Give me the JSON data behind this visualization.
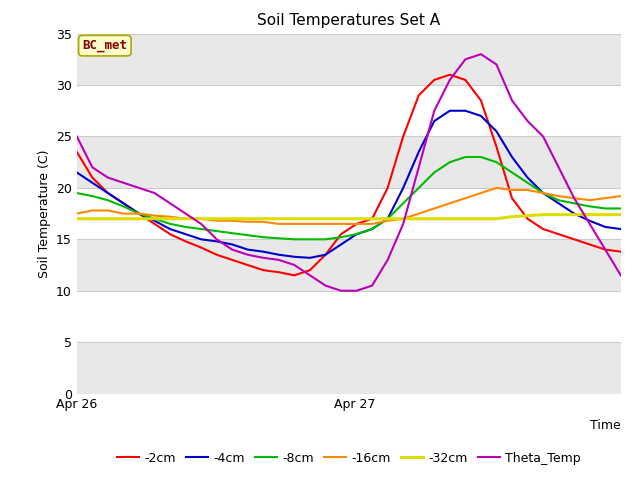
{
  "title": "Soil Temperatures Set A",
  "xlabel": "Time",
  "ylabel": "Soil Temperature (C)",
  "ylim": [
    0,
    35
  ],
  "yticks": [
    0,
    5,
    10,
    15,
    20,
    25,
    30,
    35
  ],
  "annotation_text": "BC_met",
  "annotation_color": "#8B0000",
  "annotation_bg": "#FFFFCC",
  "annotation_edge": "#AAAA00",
  "plot_bg": "#E8E8E8",
  "band_white": "#FFFFFF",
  "band_gray": "#E8E8E8",
  "grid_color": "#CCCCCC",
  "series_order": [
    "-2cm",
    "-4cm",
    "-8cm",
    "-16cm",
    "-32cm",
    "Theta_Temp"
  ],
  "series": {
    "-2cm": {
      "color": "#FF0000",
      "lw": 1.5
    },
    "-4cm": {
      "color": "#0000CC",
      "lw": 1.5
    },
    "-8cm": {
      "color": "#00BB00",
      "lw": 1.5
    },
    "-16cm": {
      "color": "#FF8800",
      "lw": 1.5
    },
    "-32cm": {
      "color": "#DDDD00",
      "lw": 2.2
    },
    "Theta_Temp": {
      "color": "#BB00BB",
      "lw": 1.5
    }
  },
  "x_ticks_labels": [
    "Apr 26",
    "Apr 27"
  ],
  "x_ticks_pos": [
    0,
    0.714
  ],
  "x_range": [
    0,
    1.4
  ],
  "data": {
    "t": [
      0.0,
      0.04,
      0.08,
      0.12,
      0.16,
      0.2,
      0.24,
      0.28,
      0.32,
      0.36,
      0.4,
      0.44,
      0.48,
      0.52,
      0.56,
      0.6,
      0.64,
      0.68,
      0.72,
      0.76,
      0.8,
      0.84,
      0.88,
      0.92,
      0.96,
      1.0,
      1.04,
      1.08,
      1.12,
      1.16,
      1.2,
      1.24,
      1.28,
      1.32,
      1.36,
      1.4
    ],
    "-2cm": [
      23.5,
      21.0,
      19.5,
      18.5,
      17.5,
      16.5,
      15.5,
      14.8,
      14.2,
      13.5,
      13.0,
      12.5,
      12.0,
      11.8,
      11.5,
      12.0,
      13.5,
      15.5,
      16.5,
      17.0,
      20.0,
      25.0,
      29.0,
      30.5,
      31.0,
      30.5,
      28.5,
      24.0,
      19.0,
      17.0,
      16.0,
      15.5,
      15.0,
      14.5,
      14.0,
      13.8
    ],
    "-4cm": [
      21.5,
      20.5,
      19.5,
      18.5,
      17.5,
      16.8,
      16.0,
      15.5,
      15.0,
      14.8,
      14.5,
      14.0,
      13.8,
      13.5,
      13.3,
      13.2,
      13.5,
      14.5,
      15.5,
      16.0,
      17.0,
      20.0,
      23.5,
      26.5,
      27.5,
      27.5,
      27.0,
      25.5,
      23.0,
      21.0,
      19.5,
      18.5,
      17.5,
      16.8,
      16.2,
      16.0
    ],
    "-8cm": [
      19.5,
      19.2,
      18.8,
      18.2,
      17.5,
      17.0,
      16.5,
      16.2,
      16.0,
      15.8,
      15.6,
      15.4,
      15.2,
      15.1,
      15.0,
      15.0,
      15.0,
      15.2,
      15.5,
      16.0,
      17.0,
      18.5,
      20.0,
      21.5,
      22.5,
      23.0,
      23.0,
      22.5,
      21.5,
      20.5,
      19.5,
      18.8,
      18.5,
      18.2,
      18.0,
      18.0
    ],
    "-16cm": [
      17.5,
      17.8,
      17.8,
      17.5,
      17.5,
      17.3,
      17.2,
      17.0,
      17.0,
      16.8,
      16.8,
      16.7,
      16.7,
      16.5,
      16.5,
      16.5,
      16.5,
      16.5,
      16.5,
      16.5,
      16.8,
      17.0,
      17.5,
      18.0,
      18.5,
      19.0,
      19.5,
      20.0,
      19.8,
      19.8,
      19.5,
      19.2,
      19.0,
      18.8,
      19.0,
      19.2
    ],
    "-32cm": [
      17.0,
      17.0,
      17.0,
      17.0,
      17.0,
      17.0,
      17.0,
      17.0,
      17.0,
      17.0,
      17.0,
      17.0,
      17.0,
      17.0,
      17.0,
      17.0,
      17.0,
      17.0,
      17.0,
      17.0,
      17.0,
      17.0,
      17.0,
      17.0,
      17.0,
      17.0,
      17.0,
      17.0,
      17.2,
      17.3,
      17.4,
      17.4,
      17.4,
      17.4,
      17.4,
      17.4
    ],
    "Theta_Temp": [
      25.0,
      22.0,
      21.0,
      20.5,
      20.0,
      19.5,
      18.5,
      17.5,
      16.5,
      15.0,
      14.0,
      13.5,
      13.2,
      13.0,
      12.5,
      11.5,
      10.5,
      10.0,
      10.0,
      10.5,
      13.0,
      16.5,
      22.0,
      27.5,
      30.5,
      32.5,
      33.0,
      32.0,
      28.5,
      26.5,
      25.0,
      22.0,
      19.0,
      16.5,
      14.0,
      11.5
    ]
  }
}
